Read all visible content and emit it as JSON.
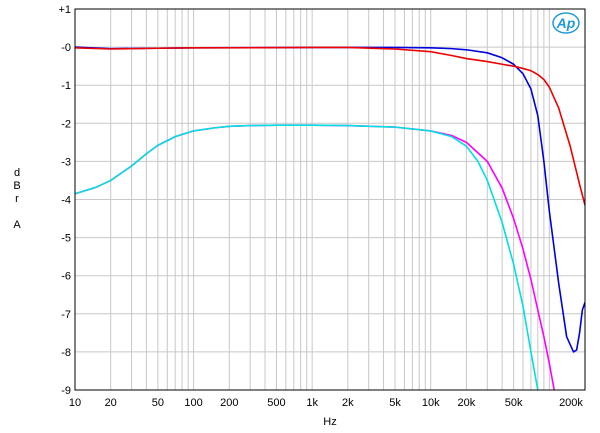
{
  "logo": {
    "text": "Ap",
    "color": "#1f9bd8"
  },
  "chart_data": {
    "type": "line",
    "xlabel": "Hz",
    "ylabel_lines": [
      "d",
      "B",
      "r",
      "",
      "A"
    ],
    "x_scale": "log",
    "xlim": [
      10,
      200000
    ],
    "ylim": [
      -9,
      1
    ],
    "grid": true,
    "x_ticks": [
      {
        "value": 10,
        "label": "10"
      },
      {
        "value": 20,
        "label": "20"
      },
      {
        "value": 50,
        "label": "50"
      },
      {
        "value": 100,
        "label": "100"
      },
      {
        "value": 200,
        "label": "200"
      },
      {
        "value": 500,
        "label": "500"
      },
      {
        "value": 1000,
        "label": "1k"
      },
      {
        "value": 2000,
        "label": "2k"
      },
      {
        "value": 5000,
        "label": "5k"
      },
      {
        "value": 10000,
        "label": "10k"
      },
      {
        "value": 20000,
        "label": "20k"
      },
      {
        "value": 50000,
        "label": "50k"
      },
      {
        "value": 200000,
        "label": "200k"
      }
    ],
    "y_ticks": [
      {
        "value": 1,
        "label": "+1"
      },
      {
        "value": 0,
        "label": "-0"
      },
      {
        "value": -1,
        "label": "-1"
      },
      {
        "value": -2,
        "label": "-2"
      },
      {
        "value": -3,
        "label": "-3"
      },
      {
        "value": -4,
        "label": "-4"
      },
      {
        "value": -5,
        "label": "-5"
      },
      {
        "value": -6,
        "label": "-6"
      },
      {
        "value": -7,
        "label": "-7"
      },
      {
        "value": -8,
        "label": "-8"
      },
      {
        "value": -9,
        "label": "-9"
      }
    ],
    "series": [
      {
        "color": "#ff00ff",
        "points": [
          [
            10,
            -3.85
          ],
          [
            15,
            -3.68
          ],
          [
            20,
            -3.5
          ],
          [
            30,
            -3.12
          ],
          [
            40,
            -2.8
          ],
          [
            50,
            -2.58
          ],
          [
            70,
            -2.35
          ],
          [
            100,
            -2.2
          ],
          [
            150,
            -2.12
          ],
          [
            200,
            -2.08
          ],
          [
            300,
            -2.06
          ],
          [
            500,
            -2.05
          ],
          [
            1000,
            -2.05
          ],
          [
            2000,
            -2.06
          ],
          [
            5000,
            -2.1
          ],
          [
            10000,
            -2.2
          ],
          [
            15000,
            -2.32
          ],
          [
            20000,
            -2.5
          ],
          [
            30000,
            -3.0
          ],
          [
            40000,
            -3.7
          ],
          [
            50000,
            -4.5
          ],
          [
            60000,
            -5.3
          ],
          [
            70000,
            -6.1
          ],
          [
            80000,
            -6.9
          ],
          [
            90000,
            -7.6
          ],
          [
            100000,
            -8.3
          ],
          [
            110000,
            -9.0
          ]
        ]
      },
      {
        "color": "#00e0e0",
        "points": [
          [
            10,
            -3.85
          ],
          [
            15,
            -3.68
          ],
          [
            20,
            -3.5
          ],
          [
            30,
            -3.12
          ],
          [
            40,
            -2.8
          ],
          [
            50,
            -2.58
          ],
          [
            70,
            -2.35
          ],
          [
            100,
            -2.2
          ],
          [
            150,
            -2.12
          ],
          [
            200,
            -2.08
          ],
          [
            300,
            -2.06
          ],
          [
            500,
            -2.05
          ],
          [
            1000,
            -2.05
          ],
          [
            2000,
            -2.06
          ],
          [
            5000,
            -2.1
          ],
          [
            10000,
            -2.2
          ],
          [
            15000,
            -2.35
          ],
          [
            20000,
            -2.6
          ],
          [
            25000,
            -3.0
          ],
          [
            30000,
            -3.5
          ],
          [
            40000,
            -4.6
          ],
          [
            50000,
            -5.7
          ],
          [
            60000,
            -6.8
          ],
          [
            70000,
            -8.0
          ],
          [
            80000,
            -9.0
          ]
        ]
      },
      {
        "color": "#0000dd",
        "points": [
          [
            10,
            0.0
          ],
          [
            20,
            -0.04
          ],
          [
            50,
            -0.03
          ],
          [
            100,
            -0.02
          ],
          [
            1000,
            -0.01
          ],
          [
            5000,
            -0.01
          ],
          [
            10000,
            -0.02
          ],
          [
            15000,
            -0.04
          ],
          [
            20000,
            -0.07
          ],
          [
            30000,
            -0.15
          ],
          [
            40000,
            -0.28
          ],
          [
            50000,
            -0.45
          ],
          [
            60000,
            -0.7
          ],
          [
            70000,
            -1.1
          ],
          [
            80000,
            -1.8
          ],
          [
            90000,
            -3.0
          ],
          [
            100000,
            -4.3
          ],
          [
            120000,
            -6.2
          ],
          [
            140000,
            -7.6
          ],
          [
            160000,
            -8.0
          ],
          [
            170000,
            -7.95
          ],
          [
            180000,
            -7.5
          ],
          [
            190000,
            -6.9
          ],
          [
            200000,
            -6.7
          ]
        ]
      },
      {
        "color": "#ee0000",
        "points": [
          [
            10,
            -0.02
          ],
          [
            20,
            -0.05
          ],
          [
            50,
            -0.03
          ],
          [
            100,
            -0.02
          ],
          [
            1000,
            -0.01
          ],
          [
            2000,
            -0.01
          ],
          [
            5000,
            -0.05
          ],
          [
            10000,
            -0.12
          ],
          [
            15000,
            -0.22
          ],
          [
            20000,
            -0.3
          ],
          [
            30000,
            -0.38
          ],
          [
            40000,
            -0.45
          ],
          [
            50000,
            -0.5
          ],
          [
            60000,
            -0.56
          ],
          [
            70000,
            -0.62
          ],
          [
            80000,
            -0.72
          ],
          [
            90000,
            -0.85
          ],
          [
            100000,
            -1.05
          ],
          [
            120000,
            -1.6
          ],
          [
            150000,
            -2.6
          ],
          [
            180000,
            -3.6
          ],
          [
            200000,
            -4.15
          ]
        ]
      }
    ]
  }
}
